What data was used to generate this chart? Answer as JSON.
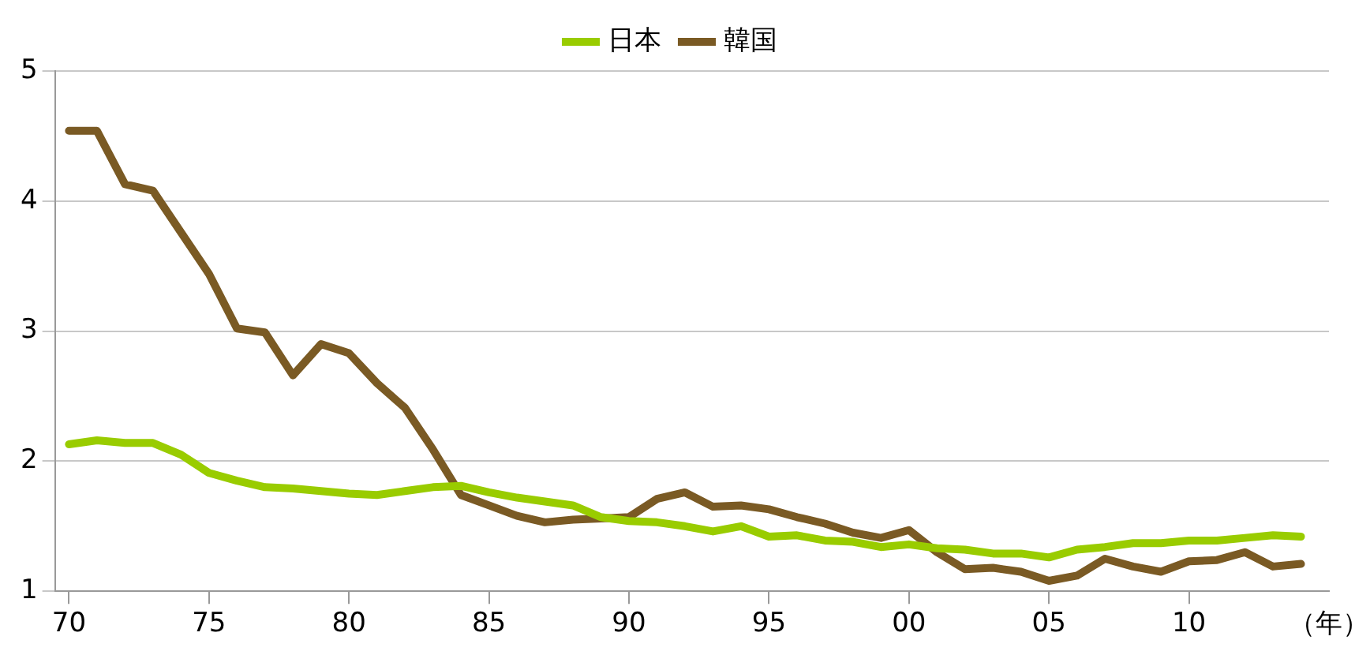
{
  "chart_data": {
    "type": "line",
    "xlabel": "（年）",
    "x": [
      1970,
      1971,
      1972,
      1973,
      1974,
      1975,
      1976,
      1977,
      1978,
      1979,
      1980,
      1981,
      1982,
      1983,
      1984,
      1985,
      1986,
      1987,
      1988,
      1989,
      1990,
      1991,
      1992,
      1993,
      1994,
      1995,
      1996,
      1997,
      1998,
      1999,
      2000,
      2001,
      2002,
      2003,
      2004,
      2005,
      2006,
      2007,
      2008,
      2009,
      2010,
      2011,
      2012,
      2013,
      2014
    ],
    "series": [
      {
        "name": "日本",
        "color": "#99cc00",
        "values": [
          2.13,
          2.16,
          2.14,
          2.14,
          2.05,
          1.91,
          1.85,
          1.8,
          1.79,
          1.77,
          1.75,
          1.74,
          1.77,
          1.8,
          1.81,
          1.76,
          1.72,
          1.69,
          1.66,
          1.57,
          1.54,
          1.53,
          1.5,
          1.46,
          1.5,
          1.42,
          1.43,
          1.39,
          1.38,
          1.34,
          1.36,
          1.33,
          1.32,
          1.29,
          1.29,
          1.26,
          1.32,
          1.34,
          1.37,
          1.37,
          1.39,
          1.39,
          1.41,
          1.43,
          1.42
        ]
      },
      {
        "name": "韓国",
        "color": "#7a5a24",
        "values": [
          4.54,
          4.54,
          4.13,
          4.08,
          3.76,
          3.44,
          3.02,
          2.99,
          2.66,
          2.9,
          2.83,
          2.6,
          2.41,
          2.09,
          1.74,
          1.66,
          1.58,
          1.53,
          1.55,
          1.56,
          1.57,
          1.71,
          1.76,
          1.65,
          1.66,
          1.63,
          1.57,
          1.52,
          1.45,
          1.41,
          1.47,
          1.3,
          1.17,
          1.18,
          1.15,
          1.08,
          1.12,
          1.25,
          1.19,
          1.15,
          1.23,
          1.24,
          1.3,
          1.19,
          1.21
        ]
      }
    ],
    "xlim": [
      1969.5,
      2015
    ],
    "xticks": [
      {
        "value": 1970,
        "label": "70"
      },
      {
        "value": 1975,
        "label": "75"
      },
      {
        "value": 1980,
        "label": "80"
      },
      {
        "value": 1985,
        "label": "85"
      },
      {
        "value": 1990,
        "label": "90"
      },
      {
        "value": 1995,
        "label": "95"
      },
      {
        "value": 2000,
        "label": "00"
      },
      {
        "value": 2005,
        "label": "05"
      },
      {
        "value": 2010,
        "label": "10"
      }
    ],
    "ylim": [
      1,
      5
    ],
    "yticks": [
      1,
      2,
      3,
      4,
      5
    ],
    "grid": "y",
    "legend": "top",
    "marker": "none",
    "line_style": "solid"
  }
}
